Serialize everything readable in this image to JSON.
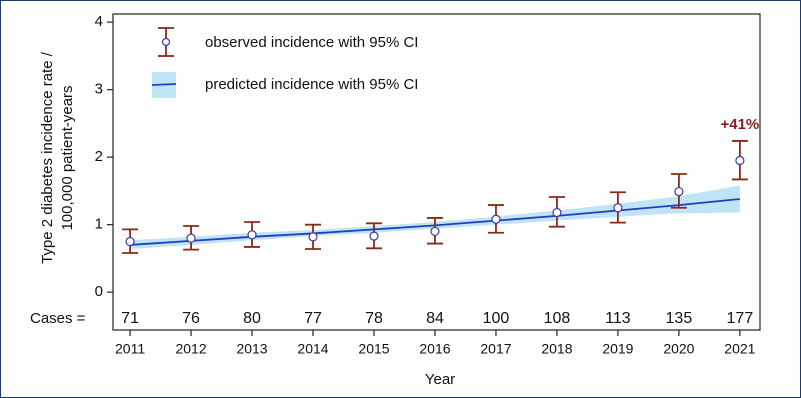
{
  "chart_data": {
    "type": "line",
    "x_label": "Year",
    "y_label": [
      "Type 2 diabetes incidence rate /",
      "100,000 patient-years"
    ],
    "x": [
      2011,
      2012,
      2013,
      2014,
      2015,
      2016,
      2017,
      2018,
      2019,
      2020,
      2021
    ],
    "xlim": [
      2010.72,
      2021.33
    ],
    "ylim": [
      -0.56,
      4.12
    ],
    "yticks": [
      0,
      1,
      2,
      3,
      4
    ],
    "cases_label": "Cases =",
    "cases": [
      71,
      76,
      80,
      77,
      78,
      84,
      100,
      108,
      113,
      135,
      177
    ],
    "annotation": "+41%",
    "annotation_color": "#8b1a1a",
    "series": [
      {
        "name": "observed incidence with 95% CI",
        "color": "#8b2a1a",
        "marker_color": "#3a3aa0",
        "values": [
          0.75,
          0.8,
          0.85,
          0.82,
          0.83,
          0.9,
          1.08,
          1.18,
          1.25,
          1.49,
          1.95
        ],
        "lower": [
          0.58,
          0.63,
          0.67,
          0.64,
          0.65,
          0.72,
          0.88,
          0.97,
          1.03,
          1.25,
          1.67
        ],
        "upper": [
          0.93,
          0.98,
          1.04,
          1.0,
          1.02,
          1.1,
          1.29,
          1.41,
          1.48,
          1.75,
          2.24
        ]
      },
      {
        "name": "predicted incidence with 95% CI",
        "color": "#1f3fbf",
        "band_color": "#bfe3f7",
        "values": [
          0.7,
          0.76,
          0.82,
          0.87,
          0.93,
          0.99,
          1.06,
          1.13,
          1.21,
          1.29,
          1.38
        ],
        "lower": [
          0.64,
          0.7,
          0.77,
          0.83,
          0.88,
          0.94,
          1.0,
          1.06,
          1.12,
          1.17,
          1.18
        ],
        "upper": [
          0.77,
          0.82,
          0.88,
          0.92,
          0.98,
          1.04,
          1.12,
          1.21,
          1.31,
          1.42,
          1.58
        ]
      }
    ]
  }
}
